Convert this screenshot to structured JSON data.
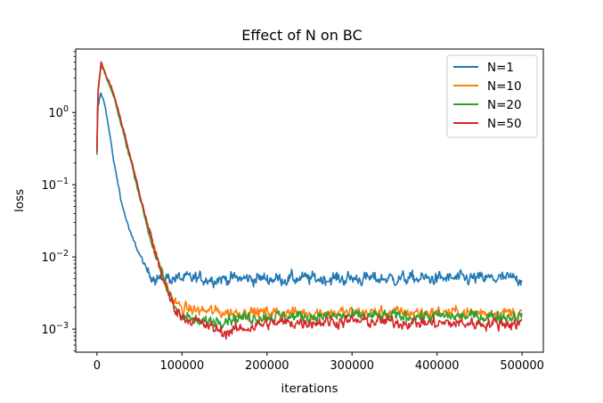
{
  "chart_data": {
    "type": "line",
    "title": "Effect of N on BC",
    "xlabel": "iterations",
    "ylabel": "loss",
    "yscale": "log",
    "xlim": [
      -25000,
      525000
    ],
    "ylim_log10": [
      -3.32,
      0.88
    ],
    "xticks": [
      0,
      100000,
      200000,
      300000,
      400000,
      500000
    ],
    "xtick_labels": [
      "0",
      "100000",
      "200000",
      "300000",
      "400000",
      "500000"
    ],
    "yticks": [
      {
        "base": "10",
        "exp": "0",
        "log10": 0
      },
      {
        "base": "10",
        "exp": "−1",
        "log10": -1
      },
      {
        "base": "10",
        "exp": "−2",
        "log10": -2
      },
      {
        "base": "10",
        "exp": "−3",
        "log10": -3
      }
    ],
    "grid": false,
    "legend_position": "top-right",
    "series": [
      {
        "name": "N=1",
        "color": "#1f77b4",
        "points": [
          [
            0,
            0.3
          ],
          [
            1000,
            1.1
          ],
          [
            4500,
            1.9
          ],
          [
            10000,
            1.2
          ],
          [
            20000,
            0.2
          ],
          [
            30000,
            0.05
          ],
          [
            40000,
            0.02
          ],
          [
            50000,
            0.011
          ],
          [
            60000,
            0.006
          ],
          [
            70000,
            0.0052
          ],
          [
            100000,
            0.005
          ],
          [
            200000,
            0.005
          ],
          [
            300000,
            0.005
          ],
          [
            400000,
            0.005
          ],
          [
            500000,
            0.005
          ]
        ],
        "noise": 0.055
      },
      {
        "name": "N=10",
        "color": "#ff7f0e",
        "points": [
          [
            0,
            0.28
          ],
          [
            1000,
            1.8
          ],
          [
            5000,
            4.8
          ],
          [
            20000,
            1.7
          ],
          [
            40000,
            0.22
          ],
          [
            60000,
            0.025
          ],
          [
            80000,
            0.0045
          ],
          [
            90000,
            0.0025
          ],
          [
            100000,
            0.0019
          ],
          [
            150000,
            0.0017
          ],
          [
            200000,
            0.0017
          ],
          [
            300000,
            0.0017
          ],
          [
            400000,
            0.0017
          ],
          [
            500000,
            0.0017
          ]
        ],
        "noise": 0.05
      },
      {
        "name": "N=20",
        "color": "#2ca02c",
        "points": [
          [
            0,
            0.25
          ],
          [
            1000,
            1.7
          ],
          [
            5000,
            4.7
          ],
          [
            20000,
            1.6
          ],
          [
            40000,
            0.21
          ],
          [
            60000,
            0.024
          ],
          [
            80000,
            0.004
          ],
          [
            90000,
            0.0022
          ],
          [
            100000,
            0.0016
          ],
          [
            120000,
            0.0012
          ],
          [
            150000,
            0.0014
          ],
          [
            200000,
            0.0015
          ],
          [
            300000,
            0.0015
          ],
          [
            400000,
            0.0015
          ],
          [
            500000,
            0.0015
          ]
        ],
        "noise": 0.05
      },
      {
        "name": "N=50",
        "color": "#d62728",
        "points": [
          [
            0,
            0.3
          ],
          [
            1000,
            2.0
          ],
          [
            5000,
            4.8
          ],
          [
            20000,
            1.8
          ],
          [
            40000,
            0.23
          ],
          [
            60000,
            0.026
          ],
          [
            80000,
            0.004
          ],
          [
            90000,
            0.0021
          ],
          [
            100000,
            0.0015
          ],
          [
            130000,
            0.0011
          ],
          [
            150000,
            0.0009
          ],
          [
            200000,
            0.0012
          ],
          [
            300000,
            0.0013
          ],
          [
            400000,
            0.0012
          ],
          [
            500000,
            0.0012
          ]
        ],
        "noise": 0.05
      }
    ]
  }
}
